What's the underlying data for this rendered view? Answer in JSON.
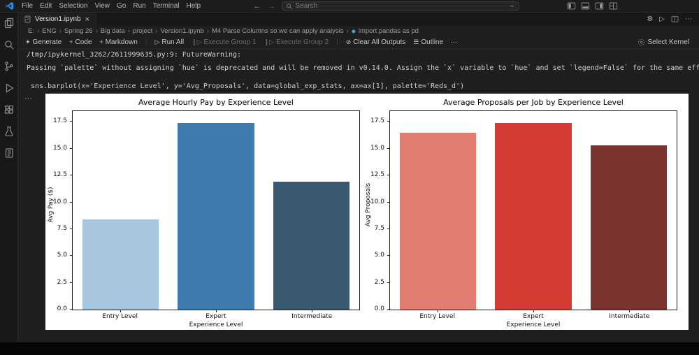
{
  "window": {
    "menus": [
      "File",
      "Edit",
      "Selection",
      "View",
      "Go",
      "Run",
      "Terminal",
      "Help"
    ],
    "search": {
      "placeholder": "Search"
    },
    "nav_back": "←",
    "nav_forward": "→",
    "layout_icons": [
      "toggle-primary-sidebar",
      "toggle-panel",
      "toggle-secondary-sidebar",
      "customize-layout"
    ]
  },
  "activity_bar": {
    "icons": [
      "explorer",
      "search",
      "source-control",
      "run-and-debug",
      "extensions",
      "testing",
      "jupyter-notebook"
    ]
  },
  "editor_tabs": {
    "active_tab": "Version1.ipynb",
    "close": "×",
    "actions": [
      "settings",
      "run",
      "split-editor",
      "more"
    ],
    "actions_glyphs": {
      "settings": "⚙",
      "run": "▷",
      "more": "⋯"
    }
  },
  "breadcrumbs": {
    "separator": "›",
    "items": [
      "E:",
      "ENG",
      "Spring 26",
      "Big data",
      "project",
      "Version1.ipynb",
      "M4 Parse Columns so we can apply analysis",
      "import pandas as pd"
    ]
  },
  "notebook_toolbar": {
    "items": [
      {
        "icon": "✦",
        "label": "Generate",
        "enabled": true,
        "sep_after": false
      },
      {
        "icon": "+",
        "label": "Code",
        "enabled": true,
        "sep_after": false
      },
      {
        "icon": "+",
        "label": "Markdown",
        "enabled": true,
        "sep_after": true
      },
      {
        "icon": "▷",
        "label": "Run All",
        "enabled": true,
        "sep_after": false
      },
      {
        "icon": "❙▷",
        "label": "Execute Group 1",
        "enabled": false,
        "sep_after": false
      },
      {
        "icon": "❙▷",
        "label": "Execute Group 2",
        "enabled": false,
        "sep_after": true
      },
      {
        "icon": "⊘",
        "label": "Clear All Outputs",
        "enabled": true,
        "sep_after": false
      },
      {
        "icon": "☰",
        "label": "Outline",
        "enabled": true,
        "sep_after": false
      },
      {
        "icon": "⋯",
        "label": "",
        "enabled": true,
        "sep_after": false
      }
    ],
    "kernel_label": "Select Kernel"
  },
  "cell_output": {
    "warning_path": "/tmp/ipykernel_3262/2611999635.py:9: FutureWarning:",
    "warning_text": "Passing `palette` without assigning `hue` is deprecated and will be removed in v0.14.0. Assign the `x` variable to `hue` and set `legend=False` for the same effect.",
    "code_line": "sns.barplot(x='Experience Level', y='Avg_Proposals', data=global_exp_stats, ax=ax[1], palette='Reds_d')",
    "cell_more": "⋯"
  },
  "chart_data": [
    {
      "type": "bar",
      "title": "Average Hourly Pay by Experience Level",
      "categories": [
        "Entry Level",
        "Expert",
        "Intermediate"
      ],
      "values": [
        8.4,
        17.4,
        11.9
      ],
      "xlabel": "Experience Level",
      "ylabel": "Avg Pay ($)",
      "ylim": [
        0,
        18.5
      ],
      "yticks": [
        0.0,
        2.5,
        5.0,
        7.5,
        10.0,
        12.5,
        15.0,
        17.5
      ],
      "grid": false,
      "legend": "none",
      "colors": [
        "#a6c7df",
        "#3d7bb0",
        "#3a5a72"
      ]
    },
    {
      "type": "bar",
      "title": "Average Proposals per Job by Experience Level",
      "categories": [
        "Entry Level",
        "Expert",
        "Intermediate"
      ],
      "values": [
        16.5,
        17.4,
        15.3
      ],
      "xlabel": "Experience Level",
      "ylabel": "Avg Proposals",
      "ylim": [
        0,
        18.5
      ],
      "yticks": [
        0.0,
        2.5,
        5.0,
        7.5,
        10.0,
        12.5,
        15.0,
        17.5
      ],
      "grid": false,
      "legend": "none",
      "colors": [
        "#e17d6e",
        "#d23c34",
        "#7d3430"
      ]
    }
  ]
}
